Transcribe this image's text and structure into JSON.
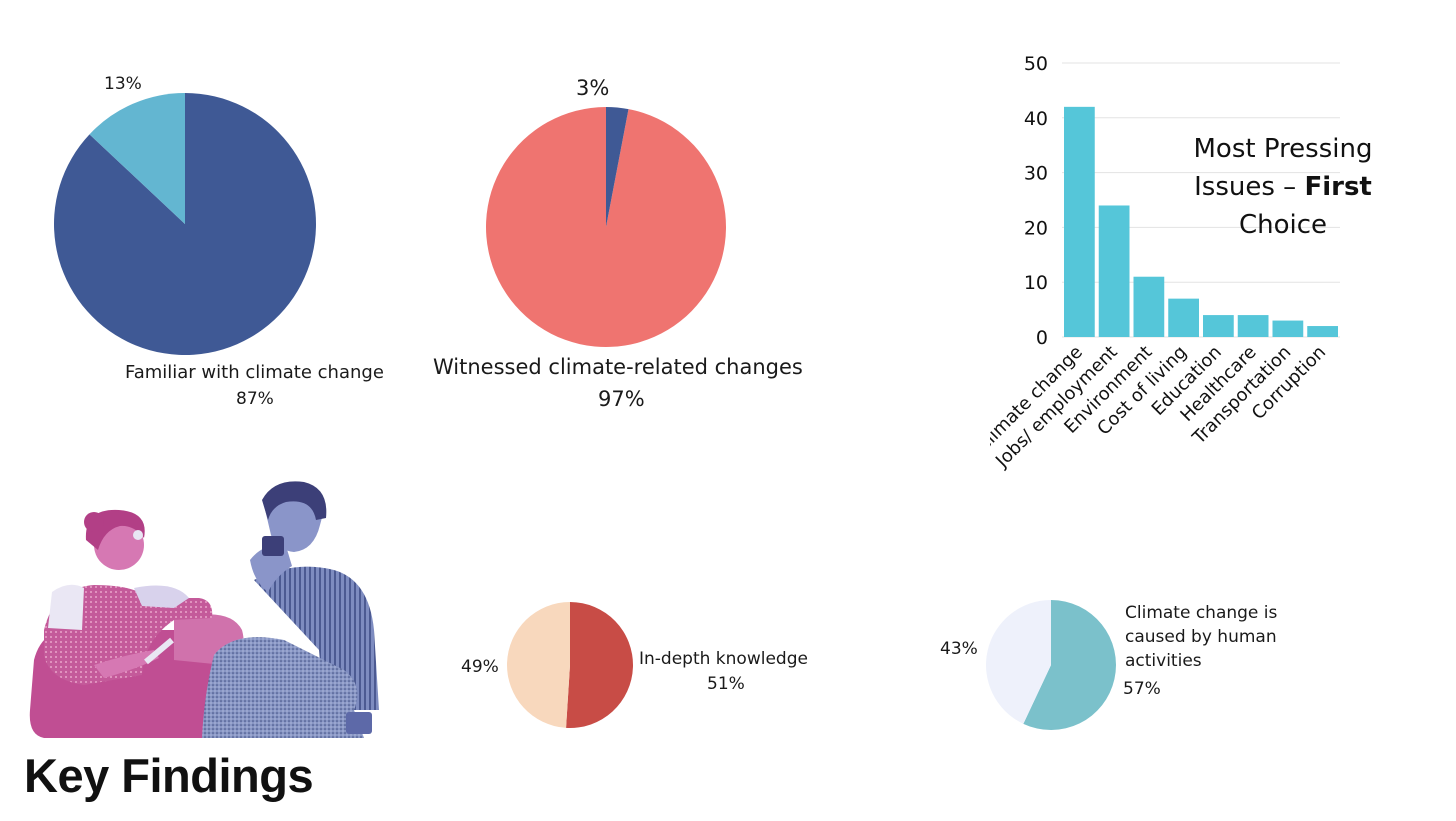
{
  "colors": {
    "navy": "#3f5995",
    "light_blue": "#63b6d1",
    "salmon": "#ef7470",
    "peach": "#f8d8bd",
    "brick": "#c84c46",
    "teal": "#7bc1cb",
    "pale": "#eef1fb",
    "bar": "#55c6d9"
  },
  "key_findings_title": "Key Findings",
  "illustration": {
    "icon": "two-people-talking-illustration"
  },
  "chart_data": [
    {
      "type": "pie",
      "labels": [
        "Familiar with climate change",
        ""
      ],
      "values": [
        87,
        13
      ],
      "value_labels": [
        "87%",
        "13%"
      ]
    },
    {
      "type": "pie",
      "labels": [
        "Witnessed climate-related changes",
        ""
      ],
      "values": [
        97,
        3
      ],
      "value_labels": [
        "97%",
        "3%"
      ]
    },
    {
      "type": "bar",
      "title_parts": [
        "Most Pressing Issues – ",
        "First",
        " Choice"
      ],
      "categories": [
        "Climate change",
        "Jobs/ employment",
        "Environment",
        "Cost of living",
        "Education",
        "Healthcare",
        "Transportation",
        "Corruption"
      ],
      "values": [
        42,
        24,
        11,
        7,
        4,
        4,
        3,
        2
      ],
      "yticks": [
        "0",
        "10",
        "20",
        "30",
        "40",
        "50"
      ],
      "ylim": [
        0,
        50
      ],
      "grid": true
    },
    {
      "type": "pie",
      "labels": [
        "In-depth knowledge",
        ""
      ],
      "values": [
        51,
        49
      ],
      "value_labels": [
        "51%",
        "49%"
      ]
    },
    {
      "type": "pie",
      "labels": [
        "Climate change is caused by human activities",
        ""
      ],
      "values": [
        57,
        43
      ],
      "value_labels": [
        "57%",
        "43%"
      ]
    }
  ]
}
